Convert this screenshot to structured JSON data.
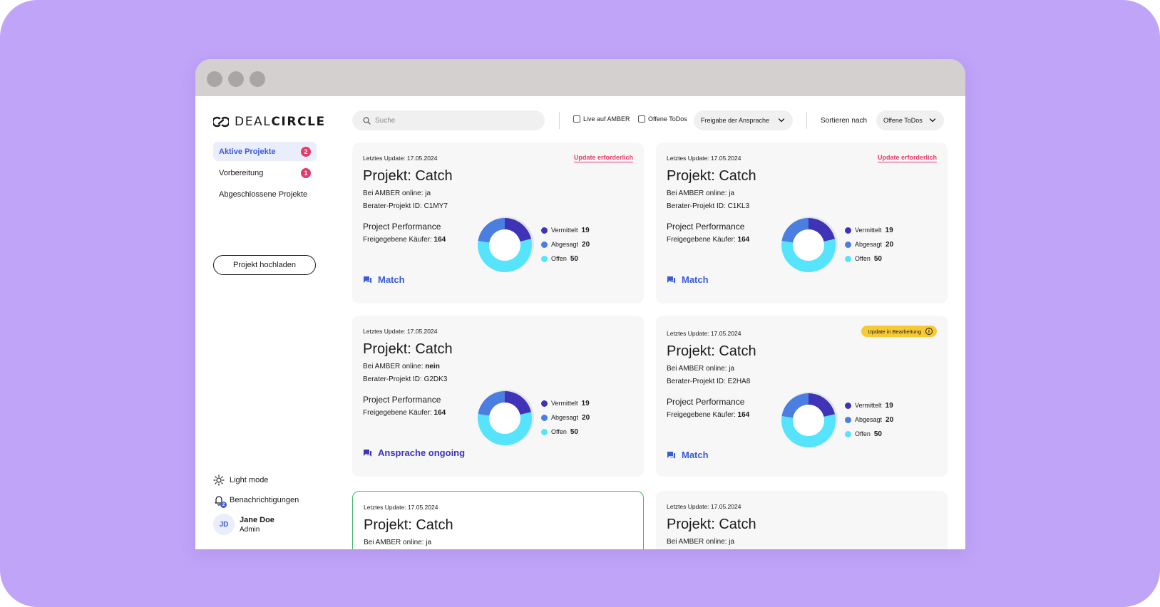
{
  "colors": {
    "backdrop": "#c0a4f8",
    "accent": "#3a5ad6",
    "alert": "#e63a6a",
    "status_yellow": "#f7c934",
    "highlight_border": "#42b86a",
    "vermittelt": "#3f33b8",
    "abgesagt": "#4a7ee0",
    "offen": "#55e4fb"
  },
  "logo": {
    "text_light": "DEAL",
    "text_bold": "CIRCLE"
  },
  "sidebar": {
    "items": [
      {
        "label": "Aktive Projekte",
        "badge": "2"
      },
      {
        "label": "Vorbereitung",
        "badge": "1"
      },
      {
        "label": "Abgeschlossene Projekte",
        "badge": ""
      }
    ],
    "upload_label": "Projekt hochladen",
    "light_mode": "Light mode",
    "notifications": "Benachrichtigungen",
    "notif_count": "2",
    "user": {
      "initials": "JD",
      "name": "Jane Doe",
      "role": "Admin"
    }
  },
  "toolbar": {
    "search_placeholder": "Suche",
    "check_live": "Live auf AMBER",
    "check_todos": "Offene ToDos",
    "filter_select": "Freigabe der Ansprache",
    "sort_label": "Sortieren nach",
    "sort_select": "Offene ToDos"
  },
  "cards": [
    {
      "date": "Letztes Update: 17.05.2024",
      "flag": "Update erforderlich",
      "status": "",
      "title": "Projekt: Catch",
      "online_label": "Bei AMBER online: ",
      "online_value": "ja",
      "online_bold": false,
      "berater": "Berater-Projekt ID: C1MY7",
      "perf": "Project Performance",
      "buyers_label": "Freigegebene Käufer: ",
      "buyers_value": "164",
      "legend": [
        {
          "label": "Vermittelt",
          "value": 19
        },
        {
          "label": "Abgesagt",
          "value": 20
        },
        {
          "label": "Offen",
          "value": 50
        }
      ],
      "action": "Match"
    },
    {
      "date": "Letztes Update: 17.05.2024",
      "flag": "Update erforderlich",
      "status": "",
      "title": "Projekt: Catch",
      "online_label": "Bei AMBER online: ",
      "online_value": "ja",
      "online_bold": false,
      "berater": "Berater-Projekt ID: C1KL3",
      "perf": "Project Performance",
      "buyers_label": "Freigegebene Käufer: ",
      "buyers_value": "164",
      "legend": [
        {
          "label": "Vermittelt",
          "value": 19
        },
        {
          "label": "Abgesagt",
          "value": 20
        },
        {
          "label": "Offen",
          "value": 50
        }
      ],
      "action": "Match"
    },
    {
      "date": "Letztes Update: 17.05.2024",
      "flag": "",
      "status": "",
      "title": "Projekt: Catch",
      "online_label": "Bei AMBER online: ",
      "online_value": "nein",
      "online_bold": true,
      "berater": "Berater-Projekt ID: G2DK3",
      "perf": "Project Performance",
      "buyers_label": "Freigegebene Käufer: ",
      "buyers_value": "164",
      "legend": [
        {
          "label": "Vermittelt",
          "value": 19
        },
        {
          "label": "Abgesagt",
          "value": 20
        },
        {
          "label": "Offen",
          "value": 50
        }
      ],
      "action": "Ansprache ongoing"
    },
    {
      "date": "Letztes Update: 17.05.2024",
      "flag": "",
      "status": "Update in Bearbeitung",
      "title": "Projekt: Catch",
      "online_label": "Bei AMBER online: ",
      "online_value": "ja",
      "online_bold": false,
      "berater": "Berater-Projekt ID: E2HA8",
      "perf": "Project Performance",
      "buyers_label": "Freigegebene Käufer: ",
      "buyers_value": "164",
      "legend": [
        {
          "label": "Vermittelt",
          "value": 19
        },
        {
          "label": "Abgesagt",
          "value": 20
        },
        {
          "label": "Offen",
          "value": 50
        }
      ],
      "action": "Match"
    },
    {
      "date": "Letztes Update: 17.05.2024",
      "title": "Projekt: Catch",
      "online_label": "Bei AMBER online: ",
      "online_value": "ja"
    },
    {
      "date": "Letztes Update: 17.05.2024",
      "title": "Projekt: Catch",
      "online_label": "Bei AMBER online: ",
      "online_value": "ja"
    }
  ]
}
